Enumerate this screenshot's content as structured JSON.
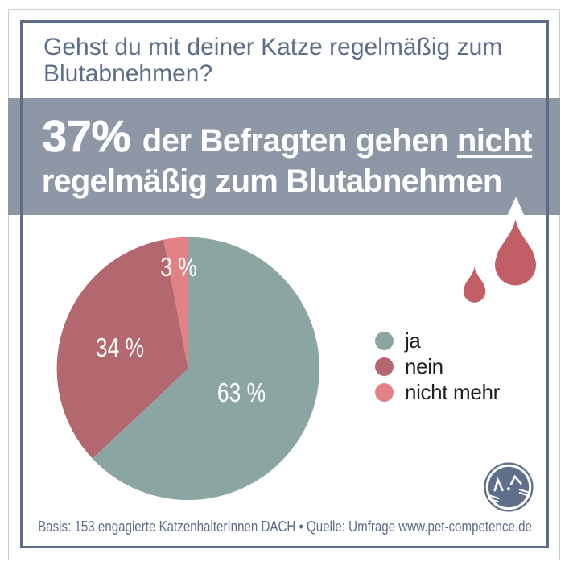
{
  "header": {
    "question_line1": "Gehst du mit deiner Katze regelmäßig zum",
    "question_line2": "Blutabnehmen?"
  },
  "banner": {
    "stat": "37%",
    "line1_rest": " der Befragten gehen ",
    "highlight": "nicht",
    "line2": "regelmäßig zum Blutabnehmen",
    "background": "#8e97a6",
    "text_color": "#ffffff"
  },
  "chart_data": {
    "type": "pie",
    "categories": [
      "ja",
      "nein",
      "nicht mehr"
    ],
    "values": [
      63,
      34,
      3
    ],
    "slice_labels": [
      "63 %",
      "34 %",
      "3 %"
    ],
    "colors": [
      "#8ba5a2",
      "#b2686e",
      "#e28186"
    ],
    "start_angle_deg": 0,
    "direction": "clockwise",
    "legend_position": "right"
  },
  "legend": {
    "items": [
      {
        "label": "ja",
        "color": "#8ba5a2"
      },
      {
        "label": "nein",
        "color": "#b2686e"
      },
      {
        "label": "nicht mehr",
        "color": "#e28186"
      }
    ]
  },
  "footer": {
    "text": "Basis: 153 engagierte KatzenhalterInnen DACH • Quelle: Umfrage www.pet-competence.de"
  },
  "icons": {
    "blood_drop_color": "#c25f66",
    "logo_color": "#5f6e89"
  },
  "colors": {
    "frame": "#5d6c87",
    "outer_square": "#c6ccd6",
    "title_text": "#5d6c87",
    "legend_text": "#1e2024",
    "background": "#ffffff"
  }
}
